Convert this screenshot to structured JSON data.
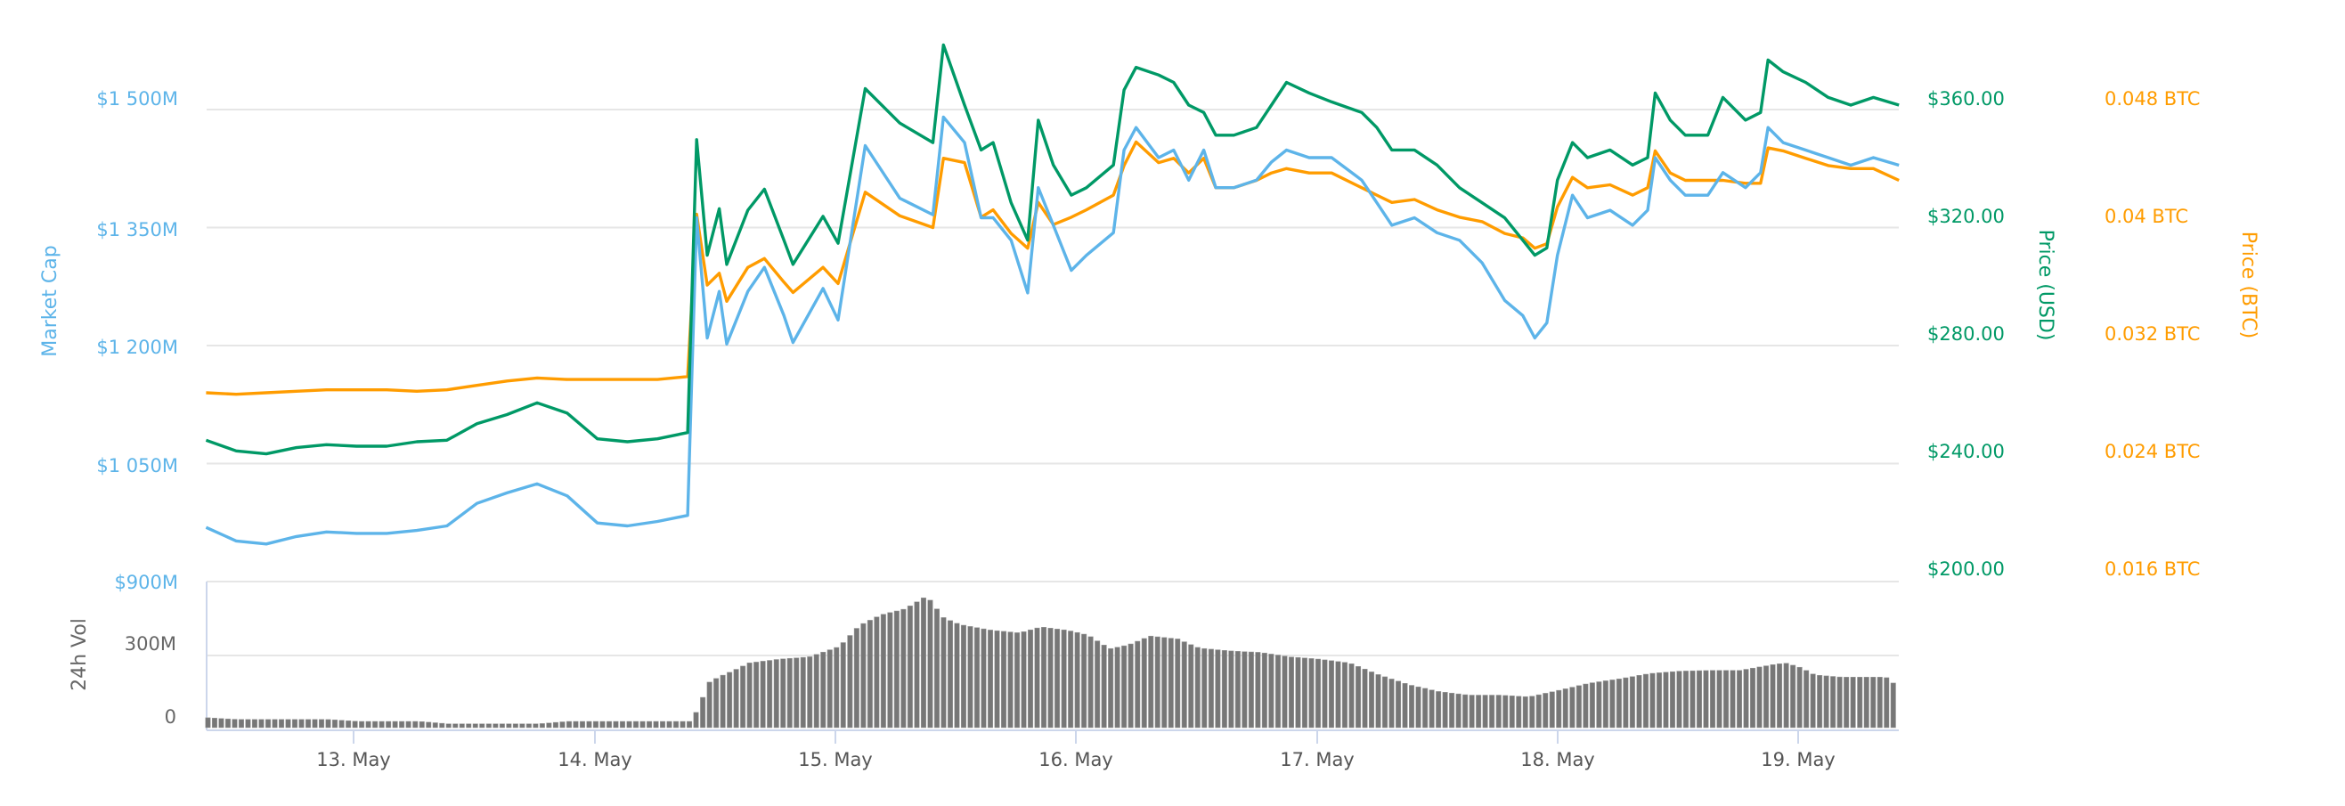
{
  "chart_data": {
    "type": "line",
    "axes": {
      "market_cap": {
        "title": "Market Cap",
        "range": [
          900,
          1500
        ],
        "unit": "M USD",
        "ticks": [
          "$900M",
          "$1 050M",
          "$1 200M",
          "$1 350M",
          "$1 500M"
        ],
        "color": "#5db4e9"
      },
      "price_usd": {
        "title": "Price (USD)",
        "range": [
          200,
          360
        ],
        "ticks": [
          "$200.00",
          "$240.00",
          "$280.00",
          "$320.00",
          "$360.00"
        ],
        "color": "#009966"
      },
      "price_btc": {
        "title": "Price (BTC)",
        "range": [
          0.016,
          0.048
        ],
        "ticks": [
          "0.016 BTC",
          "0.024 BTC",
          "0.032 BTC",
          "0.04 BTC",
          "0.048 BTC"
        ],
        "color": "#ff9c00"
      },
      "volume": {
        "title": "24h Vol",
        "range": [
          0,
          600
        ],
        "unit": "M USD",
        "ticks": [
          "0",
          "300M"
        ],
        "color": "#777777"
      },
      "x": {
        "ticks": [
          "13. May",
          "14. May",
          "15. May",
          "16. May",
          "17. May",
          "18. May",
          "19. May"
        ]
      }
    },
    "grid": true,
    "legend": "none",
    "x": [
      "12 May 09:18",
      "12 May 12:18",
      "12 May 15:18",
      "12 May 18:18",
      "12 May 21:18",
      "13 May 00:18",
      "13 May 03:18",
      "13 May 06:18",
      "13 May 09:18",
      "13 May 12:18",
      "13 May 15:18",
      "13 May 18:18",
      "13 May 21:18",
      "14 May 00:18",
      "14 May 03:18",
      "14 May 06:18",
      "14 May 09:18",
      "14 May 10:12",
      "14 May 11:15",
      "14 May 12:27",
      "14 May 13:12",
      "14 May 15:18",
      "14 May 16:57",
      "14 May 18:54",
      "14 May 19:48",
      "14 May 22:48",
      "15 May 00:18",
      "15 May 03:00",
      "15 May 06:27",
      "15 May 09:45",
      "15 May 10:48",
      "15 May 12:54",
      "15 May 14:33",
      "15 May 15:45",
      "15 May 17:33",
      "15 May 19:12",
      "15 May 20:15",
      "15 May 21:45",
      "15 May 23:33",
      "16 May 01:03",
      "16 May 03:45",
      "16 May 04:48",
      "16 May 06:00",
      "16 May 08:15",
      "16 May 09:45",
      "16 May 11:15",
      "16 May 12:45",
      "16 May 13:57",
      "16 May 15:45",
      "16 May 18:00",
      "16 May 19:30",
      "16 May 21:00",
      "16 May 23:15",
      "17 May 01:30",
      "17 May 04:30",
      "17 May 06:00",
      "17 May 07:30",
      "17 May 09:45",
      "17 May 12:00",
      "17 May 14:15",
      "17 May 16:30",
      "17 May 18:45",
      "17 May 20:33",
      "17 May 21:45",
      "17 May 22:57",
      "18 May 00:00",
      "18 May 01:30",
      "18 May 03:00",
      "18 May 05:15",
      "18 May 07:30",
      "18 May 09:00",
      "18 May 09:45",
      "18 May 11:15",
      "18 May 12:45",
      "18 May 15:00",
      "18 May 16:30",
      "18 May 18:45",
      "18 May 20:15",
      "18 May 21:00",
      "18 May 22:30",
      "19 May 00:45",
      "19 May 03:00",
      "19 May 05:15",
      "19 May 07:30",
      "19 May 10:03"
    ],
    "series": [
      {
        "name": "Market Cap",
        "axis": "market_cap",
        "color": "#5db4e9",
        "values": [
          968.8,
          951.6,
          947.8,
          957.3,
          963.1,
          961.2,
          961.2,
          965.0,
          970.7,
          999.4,
          1012.7,
          1024.2,
          1008.9,
          974.5,
          970.7,
          976.4,
          984.1,
          1362.5,
          1209.6,
          1268.8,
          1201.9,
          1268.8,
          1299.4,
          1238.2,
          1203.8,
          1272.6,
          1232.5,
          1454.2,
          1387.3,
          1366.3,
          1490.5,
          1458.0,
          1362.5,
          1362.5,
          1333.8,
          1266.9,
          1400.7,
          1352.9,
          1295.6,
          1314.7,
          1343.4,
          1448.5,
          1477.1,
          1438.9,
          1448.5,
          1410.2,
          1448.5,
          1400.7,
          1400.7,
          1410.2,
          1433.2,
          1448.5,
          1438.9,
          1438.9,
          1410.2,
          1381.6,
          1352.9,
          1362.5,
          1343.4,
          1333.8,
          1305.1,
          1257.4,
          1238.2,
          1209.6,
          1228.7,
          1314.7,
          1391.1,
          1362.5,
          1372.0,
          1352.9,
          1372.0,
          1438.9,
          1410.2,
          1391.1,
          1391.1,
          1419.8,
          1400.7,
          1419.8,
          1477.1,
          1458.0,
          1448.5,
          1438.9,
          1429.3,
          1438.9,
          1429.3
        ]
      },
      {
        "name": "Price (USD)",
        "axis": "price_usd",
        "color": "#009966",
        "values": [
          247.9,
          244.3,
          243.3,
          245.4,
          246.4,
          245.9,
          245.9,
          247.4,
          247.9,
          253.5,
          256.6,
          260.6,
          257.1,
          248.4,
          247.4,
          248.4,
          250.5,
          349.8,
          310.6,
          326.4,
          307.5,
          325.9,
          333.0,
          315.7,
          307.5,
          323.8,
          314.7,
          367.1,
          355.4,
          348.8,
          381.9,
          361.5,
          346.3,
          348.8,
          328.4,
          315.7,
          356.4,
          341.2,
          331.0,
          333.5,
          341.2,
          366.6,
          374.3,
          371.7,
          369.2,
          361.5,
          359.0,
          351.3,
          351.3,
          353.9,
          361.5,
          369.2,
          365.6,
          362.6,
          359.0,
          353.9,
          346.3,
          346.3,
          341.2,
          333.5,
          328.4,
          323.3,
          315.7,
          310.6,
          313.1,
          336.1,
          348.8,
          343.7,
          346.3,
          341.2,
          343.7,
          365.6,
          356.4,
          351.3,
          351.3,
          364.1,
          356.4,
          359.0,
          376.8,
          372.8,
          369.2,
          364.1,
          361.5,
          364.1,
          361.5
        ]
      },
      {
        "name": "Price (BTC)",
        "axis": "price_btc",
        "color": "#ff9c00",
        "values": [
          0.0288,
          0.0287,
          0.0288,
          0.0289,
          0.029,
          0.029,
          0.029,
          0.0289,
          0.029,
          0.0293,
          0.0296,
          0.0298,
          0.0297,
          0.0297,
          0.0297,
          0.0297,
          0.0299,
          0.0409,
          0.0361,
          0.0369,
          0.035,
          0.0373,
          0.0379,
          0.0363,
          0.0356,
          0.0373,
          0.0362,
          0.0424,
          0.0408,
          0.04,
          0.0447,
          0.0444,
          0.0407,
          0.0412,
          0.0396,
          0.0386,
          0.0417,
          0.0402,
          0.0407,
          0.0412,
          0.0422,
          0.0442,
          0.0458,
          0.0444,
          0.0447,
          0.0437,
          0.0447,
          0.0427,
          0.0427,
          0.0432,
          0.0437,
          0.044,
          0.0437,
          0.0437,
          0.0427,
          0.0422,
          0.0417,
          0.0419,
          0.0412,
          0.0407,
          0.0404,
          0.0396,
          0.0393,
          0.0386,
          0.0389,
          0.0414,
          0.0434,
          0.0427,
          0.0429,
          0.0422,
          0.0427,
          0.0452,
          0.0437,
          0.0432,
          0.0432,
          0.0432,
          0.043,
          0.043,
          0.0454,
          0.0452,
          0.0447,
          0.0442,
          0.044,
          0.044,
          0.0432
        ]
      }
    ],
    "volume": {
      "name": "24h Vol",
      "x": [
        "12 May 09:14",
        "12 May 12:16",
        "12 May 15:12",
        "12 May 18:14",
        "12 May 21:10",
        "13 May 00:13",
        "13 May 03:15",
        "13 May 06:11",
        "13 May 09:14",
        "13 May 12:10",
        "13 May 15:12",
        "13 May 18:14",
        "13 May 21:10",
        "14 May 00:13",
        "14 May 03:09",
        "14 May 06:11",
        "14 May 09:14",
        "14 May 10:00",
        "14 May 11:11",
        "14 May 12:16",
        "14 May 13:41",
        "14 May 15:12",
        "14 May 18:14",
        "14 May 21:10",
        "15 May 00:13",
        "15 May 02:10",
        "15 May 04:20",
        "15 May 06:44",
        "15 May 08:54",
        "15 May 10:36",
        "15 May 12:10",
        "15 May 15:12",
        "15 May 18:08",
        "15 May 20:18",
        "15 May 23:01",
        "16 May 00:58",
        "16 May 03:09",
        "16 May 05:00",
        "16 May 07:10",
        "16 May 09:53",
        "16 May 12:03",
        "16 May 15:05",
        "16 May 18:08",
        "16 May 21:10",
        "17 May 00:00",
        "17 May 03:02",
        "17 May 06:00",
        "17 May 09:01",
        "17 May 11:57",
        "17 May 14:59",
        "17 May 18:01",
        "17 May 20:57",
        "18 May 00:00",
        "18 May 02:56",
        "18 May 05:59",
        "18 May 08:55",
        "18 May 11:57",
        "18 May 14:59",
        "18 May 17:55",
        "18 May 20:57",
        "18 May 22:28",
        "19 May 00:00",
        "19 May 01:25",
        "19 May 04:08",
        "19 May 08:30",
        "19 May 09:22"
      ],
      "values": [
        41,
        34,
        34,
        34,
        34,
        26,
        26,
        26,
        16,
        16,
        16,
        16,
        26,
        26,
        26,
        26,
        26,
        69,
        188,
        213,
        238,
        269,
        285,
        294,
        338,
        425,
        469,
        494,
        548,
        456,
        429,
        406,
        394,
        419,
        404,
        385,
        328,
        344,
        381,
        369,
        331,
        319,
        313,
        294,
        285,
        269,
        219,
        178,
        150,
        135,
        135,
        128,
        156,
        185,
        203,
        225,
        235,
        238,
        238,
        260,
        269,
        250,
        219,
        210,
        210,
        181
      ]
    }
  }
}
